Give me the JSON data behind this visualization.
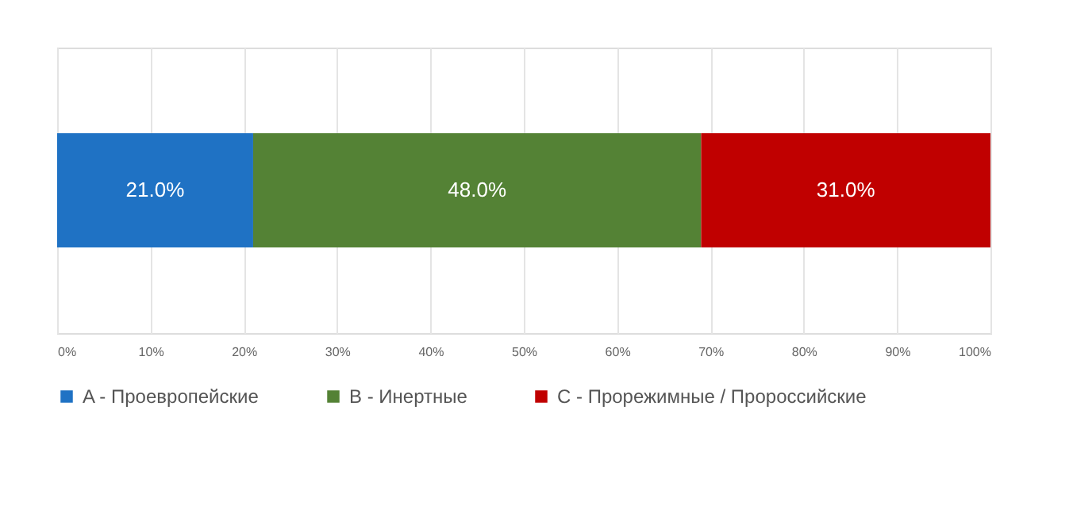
{
  "chart_data": {
    "type": "bar",
    "orientation": "horizontal",
    "stacked": true,
    "categories": [
      null
    ],
    "series": [
      {
        "name": "A - Проевропейские",
        "color": "#1f72c4",
        "values": [
          21.0
        ],
        "value_labels": [
          "21.0%"
        ]
      },
      {
        "name": "B - Инертные",
        "color": "#548235",
        "values": [
          48.0
        ],
        "value_labels": [
          "48.0%"
        ]
      },
      {
        "name": "C - Прорежимные / Пророссийские",
        "color": "#c00000",
        "values": [
          31.0
        ],
        "value_labels": [
          "31.0%"
        ]
      }
    ],
    "xlim": [
      0,
      100
    ],
    "xticks": [
      {
        "value": 0,
        "label": "0%"
      },
      {
        "value": 10,
        "label": "10%"
      },
      {
        "value": 20,
        "label": "20%"
      },
      {
        "value": 30,
        "label": "30%"
      },
      {
        "value": 40,
        "label": "40%"
      },
      {
        "value": 50,
        "label": "50%"
      },
      {
        "value": 60,
        "label": "60%"
      },
      {
        "value": 70,
        "label": "70%"
      },
      {
        "value": 80,
        "label": "80%"
      },
      {
        "value": 90,
        "label": "90%"
      },
      {
        "value": 100,
        "label": "100%"
      }
    ],
    "grid": "x",
    "legend": "bottom"
  }
}
